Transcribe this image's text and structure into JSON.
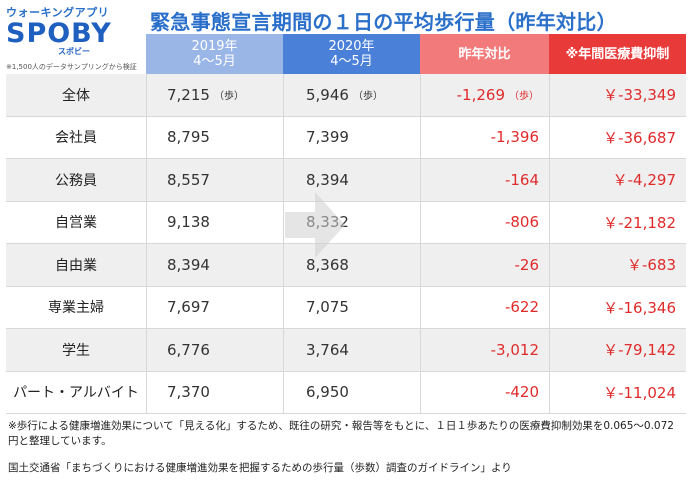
{
  "brand": {
    "top": "ウォーキングアプリ",
    "name": "SPOBY",
    "sub": "スポビー",
    "note": "※1,500人のデータサンプリングから検証"
  },
  "title": "緊急事態宣言期間の１日の平均歩行量（昨年対比）",
  "columns": {
    "y2019_line1": "2019年",
    "y2019_line2": "4〜5月",
    "y2020_line1": "2020年",
    "y2020_line2": "4〜5月",
    "diff": "昨年対比",
    "med": "※年間医療費抑制"
  },
  "unit": "（歩）",
  "chart_data": {
    "type": "table",
    "title": "緊急事態宣言期間の１日の平均歩行量（昨年対比）",
    "columns": [
      "2019年 4〜5月",
      "2020年 4〜5月",
      "昨年対比",
      "※年間医療費抑制"
    ],
    "rows": [
      {
        "label": "全体",
        "y2019": "7,215",
        "y2020": "5,946",
        "diff": "-1,269",
        "med": "￥-33,349"
      },
      {
        "label": "会社員",
        "y2019": "8,795",
        "y2020": "7,399",
        "diff": "-1,396",
        "med": "￥-36,687"
      },
      {
        "label": "公務員",
        "y2019": "8,557",
        "y2020": "8,394",
        "diff": "-164",
        "med": "￥-4,297"
      },
      {
        "label": "自営業",
        "y2019": "9,138",
        "y2020": "8,332",
        "diff": "-806",
        "med": "￥-21,182"
      },
      {
        "label": "自由業",
        "y2019": "8,394",
        "y2020": "8,368",
        "diff": "-26",
        "med": "￥-683"
      },
      {
        "label": "専業主婦",
        "y2019": "7,697",
        "y2020": "7,075",
        "diff": "-622",
        "med": "￥-16,346"
      },
      {
        "label": "学生",
        "y2019": "6,776",
        "y2020": "3,764",
        "diff": "-3,012",
        "med": "￥-79,142"
      },
      {
        "label": "パート・アルバイト",
        "y2019": "7,370",
        "y2020": "6,950",
        "diff": "-420",
        "med": "￥-11,024"
      }
    ]
  },
  "footnote": "※歩行による健康増進効果について「見える化」するため、既往の研究・報告等をもとに、１日１歩あたりの医療費抑制効果を0.065〜0.072円と整理しています。",
  "source": "国土交通省「まちづくりにおける健康増進効果を把握するための歩行量（歩数）調査のガイドライン」より",
  "colors": {
    "brand": "#1f5fbf",
    "title": "#2a6fc9",
    "header_2019": "#9ab6e6",
    "header_2020": "#4a80d8",
    "header_diff": "#f27a7a",
    "header_med": "#e93a3a",
    "negative": "#e02b2b"
  }
}
